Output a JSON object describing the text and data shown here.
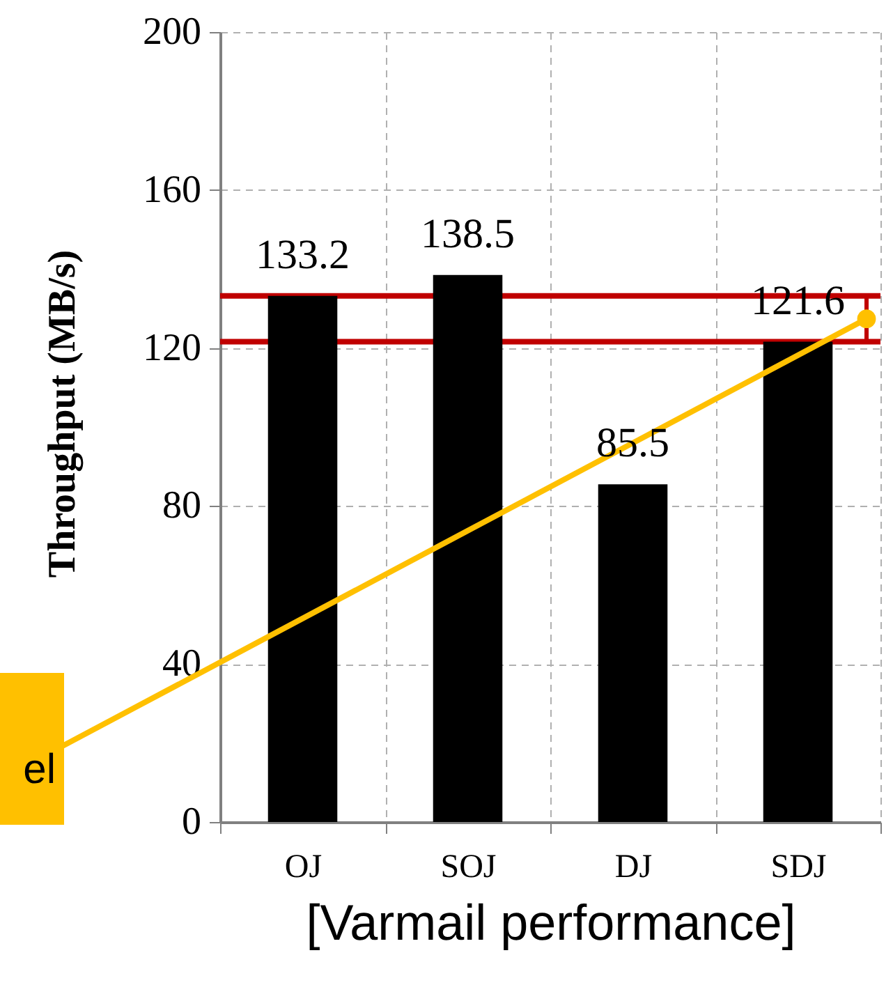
{
  "chart_data": {
    "type": "bar",
    "categories": [
      "OJ",
      "SOJ",
      "DJ",
      "SDJ"
    ],
    "values": [
      133.2,
      138.5,
      85.5,
      121.6
    ],
    "color": "#000000",
    "ylabel": "Throughput (MB/s)",
    "xlabel": "[Varmail performance]",
    "ylim": [
      0,
      200
    ],
    "yticks": [
      0,
      40,
      80,
      120,
      160,
      200
    ],
    "grid": true,
    "data_labels": true,
    "ref_lines": [
      {
        "axis": "y",
        "value": 133.2,
        "color": "#c00000"
      },
      {
        "axis": "y",
        "value": 121.6,
        "color": "#c00000"
      }
    ],
    "annotations": [
      "el"
    ]
  }
}
